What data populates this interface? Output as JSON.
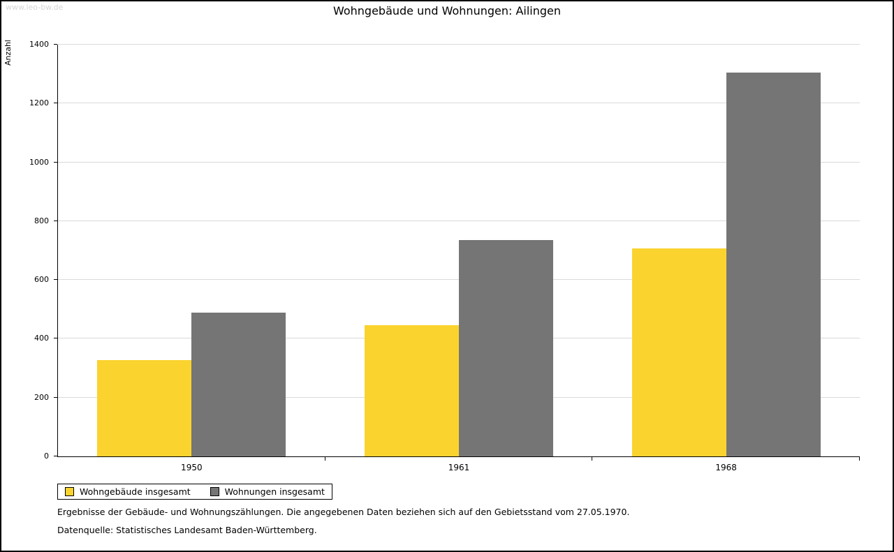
{
  "watermark": "www.leo-bw.de",
  "title": "Wohngebäude und Wohnungen: Ailingen",
  "chart_data": {
    "type": "bar",
    "categories": [
      "1950",
      "1961",
      "1968"
    ],
    "series": [
      {
        "name": "Wohngebäude insgesamt",
        "color": "#fbd32e",
        "values": [
          327,
          446,
          706
        ]
      },
      {
        "name": "Wohnungen insgesamt",
        "color": "#757575",
        "values": [
          490,
          735,
          1304
        ]
      }
    ],
    "title": "Wohngebäude und Wohnungen: Ailingen",
    "xlabel": "",
    "ylabel": "Anzahl",
    "ylim": [
      0,
      1400
    ],
    "ytick_step": 200,
    "grid": true,
    "legend_position": "bottom-left"
  },
  "footnotes": [
    "Ergebnisse der Gebäude- und Wohnungszählungen. Die angegebenen Daten beziehen sich auf den Gebietsstand vom 27.05.1970.",
    "Datenquelle: Statistisches Landesamt Baden-Württemberg."
  ]
}
